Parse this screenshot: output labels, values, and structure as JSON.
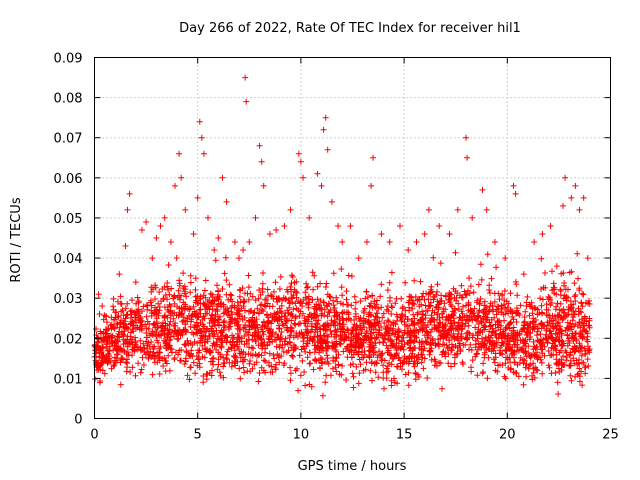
{
  "chart_data": {
    "type": "scatter",
    "title": "Day 266 of 2022, Rate Of TEC Index for receiver hil1",
    "xlabel": "GPS time / hours",
    "ylabel": "ROTI / TECUs",
    "xlim": [
      0,
      25
    ],
    "ylim": [
      0,
      0.09
    ],
    "xticks": [
      "0",
      "5",
      "10",
      "15",
      "20",
      "25"
    ],
    "yticks": [
      "0",
      "0.01",
      "0.02",
      "0.03",
      "0.04",
      "0.05",
      "0.06",
      "0.07",
      "0.08",
      "0.09"
    ],
    "grid": true,
    "marker": "plus",
    "series": [
      {
        "color": "#ff0000",
        "points": [
          [
            0.2,
            0.031
          ],
          [
            0.4,
            0.012
          ],
          [
            0.6,
            0.022
          ],
          [
            0.9,
            0.028
          ],
          [
            1.2,
            0.036
          ],
          [
            1.5,
            0.043
          ],
          [
            1.6,
            0.052
          ],
          [
            1.7,
            0.056
          ],
          [
            2.0,
            0.034
          ],
          [
            2.3,
            0.047
          ],
          [
            2.5,
            0.049
          ],
          [
            2.8,
            0.04
          ],
          [
            3.0,
            0.045
          ],
          [
            3.2,
            0.048
          ],
          [
            3.4,
            0.05
          ],
          [
            3.7,
            0.044
          ],
          [
            3.9,
            0.058
          ],
          [
            4.1,
            0.066
          ],
          [
            4.2,
            0.06
          ],
          [
            4.4,
            0.052
          ],
          [
            4.8,
            0.046
          ],
          [
            5.0,
            0.055
          ],
          [
            5.1,
            0.074
          ],
          [
            5.2,
            0.07
          ],
          [
            5.3,
            0.066
          ],
          [
            5.5,
            0.05
          ],
          [
            5.8,
            0.042
          ],
          [
            6.0,
            0.045
          ],
          [
            6.2,
            0.06
          ],
          [
            6.4,
            0.054
          ],
          [
            6.8,
            0.044
          ],
          [
            7.0,
            0.04
          ],
          [
            7.2,
            0.042
          ],
          [
            7.3,
            0.085
          ],
          [
            7.35,
            0.079
          ],
          [
            7.5,
            0.044
          ],
          [
            7.8,
            0.05
          ],
          [
            8.0,
            0.068
          ],
          [
            8.1,
            0.064
          ],
          [
            8.2,
            0.058
          ],
          [
            8.5,
            0.046
          ],
          [
            8.8,
            0.047
          ],
          [
            9.2,
            0.048
          ],
          [
            9.5,
            0.052
          ],
          [
            9.9,
            0.066
          ],
          [
            10.0,
            0.064
          ],
          [
            10.1,
            0.06
          ],
          [
            10.4,
            0.05
          ],
          [
            10.8,
            0.061
          ],
          [
            11.0,
            0.058
          ],
          [
            11.1,
            0.072
          ],
          [
            11.2,
            0.075
          ],
          [
            11.3,
            0.067
          ],
          [
            11.5,
            0.054
          ],
          [
            11.8,
            0.048
          ],
          [
            12.0,
            0.044
          ],
          [
            12.4,
            0.048
          ],
          [
            12.8,
            0.04
          ],
          [
            13.2,
            0.044
          ],
          [
            13.4,
            0.058
          ],
          [
            13.5,
            0.065
          ],
          [
            13.9,
            0.046
          ],
          [
            14.3,
            0.044
          ],
          [
            14.8,
            0.048
          ],
          [
            15.2,
            0.042
          ],
          [
            15.6,
            0.044
          ],
          [
            16.0,
            0.046
          ],
          [
            16.2,
            0.052
          ],
          [
            16.7,
            0.048
          ],
          [
            17.2,
            0.046
          ],
          [
            17.6,
            0.052
          ],
          [
            18.0,
            0.07
          ],
          [
            18.05,
            0.065
          ],
          [
            18.3,
            0.05
          ],
          [
            18.8,
            0.057
          ],
          [
            19.0,
            0.052
          ],
          [
            19.4,
            0.044
          ],
          [
            19.9,
            0.04
          ],
          [
            20.3,
            0.058
          ],
          [
            20.4,
            0.056
          ],
          [
            20.8,
            0.036
          ],
          [
            21.3,
            0.044
          ],
          [
            21.7,
            0.046
          ],
          [
            22.1,
            0.048
          ],
          [
            22.4,
            0.038
          ],
          [
            22.7,
            0.053
          ],
          [
            22.8,
            0.06
          ],
          [
            23.1,
            0.055
          ],
          [
            23.3,
            0.058
          ],
          [
            23.5,
            0.052
          ],
          [
            23.7,
            0.055
          ],
          [
            23.9,
            0.04
          ]
        ]
      }
    ],
    "band": {
      "note": "dense cloud of points across the day",
      "x_range": [
        0,
        24
      ],
      "min_curve": [
        [
          0,
          0.006
        ],
        [
          2,
          0.007
        ],
        [
          4,
          0.006
        ],
        [
          6,
          0.005
        ],
        [
          8,
          0.006
        ],
        [
          10,
          0.005
        ],
        [
          11,
          0.003
        ],
        [
          12,
          0.006
        ],
        [
          14,
          0.005
        ],
        [
          15,
          0.004
        ],
        [
          16,
          0.006
        ],
        [
          18,
          0.007
        ],
        [
          20,
          0.006
        ],
        [
          22,
          0.005
        ],
        [
          22.8,
          0.003
        ],
        [
          24,
          0.005
        ]
      ],
      "max_curve": [
        [
          0,
          0.03
        ],
        [
          1,
          0.036
        ],
        [
          2,
          0.04
        ],
        [
          3,
          0.044
        ],
        [
          4,
          0.045
        ],
        [
          5,
          0.046
        ],
        [
          6,
          0.045
        ],
        [
          7,
          0.042
        ],
        [
          8,
          0.044
        ],
        [
          9,
          0.045
        ],
        [
          10,
          0.048
        ],
        [
          11,
          0.046
        ],
        [
          12,
          0.04
        ],
        [
          13,
          0.04
        ],
        [
          14,
          0.042
        ],
        [
          15,
          0.043
        ],
        [
          16,
          0.044
        ],
        [
          17,
          0.045
        ],
        [
          18,
          0.046
        ],
        [
          19,
          0.044
        ],
        [
          20,
          0.04
        ],
        [
          21,
          0.04
        ],
        [
          22,
          0.045
        ],
        [
          23,
          0.048
        ],
        [
          24,
          0.04
        ]
      ],
      "point_count": 3200
    }
  }
}
